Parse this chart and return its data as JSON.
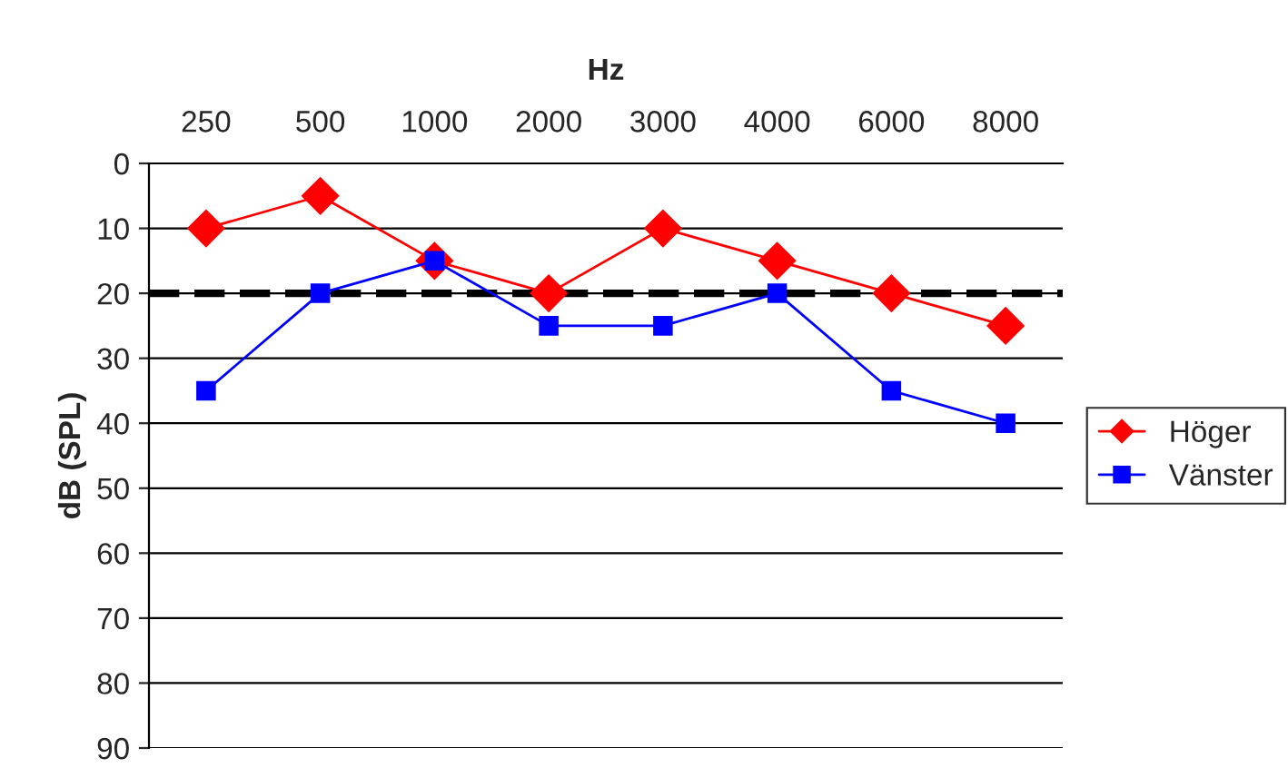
{
  "chart_data": {
    "type": "line",
    "xlabel": "Hz",
    "ylabel": "dB (SPL)",
    "categories": [
      "250",
      "500",
      "1000",
      "2000",
      "3000",
      "4000",
      "6000",
      "8000"
    ],
    "series": [
      {
        "name": "Höger",
        "color": "#ff0000",
        "marker": "diamond",
        "values": [
          10,
          5,
          15,
          20,
          10,
          15,
          20,
          25
        ]
      },
      {
        "name": "Vänster",
        "color": "#0000ff",
        "marker": "square",
        "values": [
          35,
          20,
          15,
          25,
          25,
          20,
          35,
          40
        ]
      }
    ],
    "ylim": [
      90,
      0
    ],
    "yticks": [
      0,
      10,
      20,
      30,
      40,
      50,
      60,
      70,
      80,
      90
    ],
    "ref_lines": [
      {
        "axis": "y",
        "value": 20,
        "color": "#000000",
        "line_style": "dashed"
      }
    ],
    "grid": "y",
    "legend": "right",
    "line_style": "solid"
  }
}
